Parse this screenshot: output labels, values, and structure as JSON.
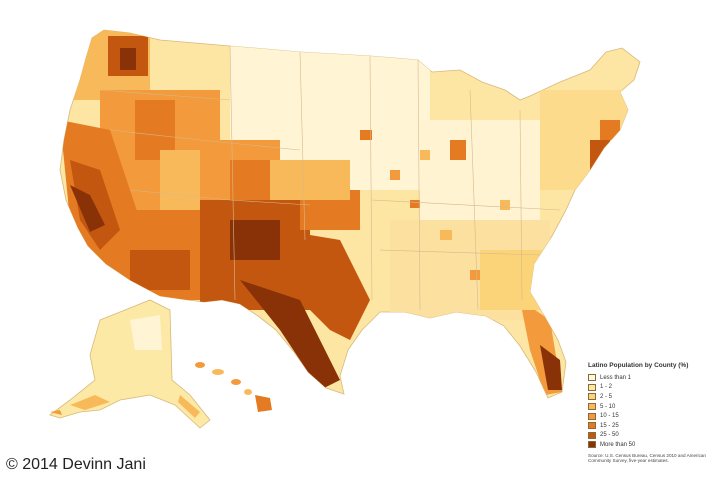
{
  "legend": {
    "title": "Latino Population by County (%)",
    "items": [
      {
        "label": "Less than 1",
        "color": "#fff7dd"
      },
      {
        "label": "1 - 2",
        "color": "#fde9a6"
      },
      {
        "label": "2 - 5",
        "color": "#fbd47a"
      },
      {
        "label": "5 - 10",
        "color": "#f8b95a"
      },
      {
        "label": "10 - 15",
        "color": "#f29a3c"
      },
      {
        "label": "15 - 25",
        "color": "#e47a22"
      },
      {
        "label": "25 - 50",
        "color": "#c4570f"
      },
      {
        "label": "More than 50",
        "color": "#8a3207"
      }
    ],
    "source": "Source: U.S. Census Bureau, Census 2010 and American Community Survey, five-year estimates."
  },
  "copyright": "© 2014 Devinn Jani"
}
